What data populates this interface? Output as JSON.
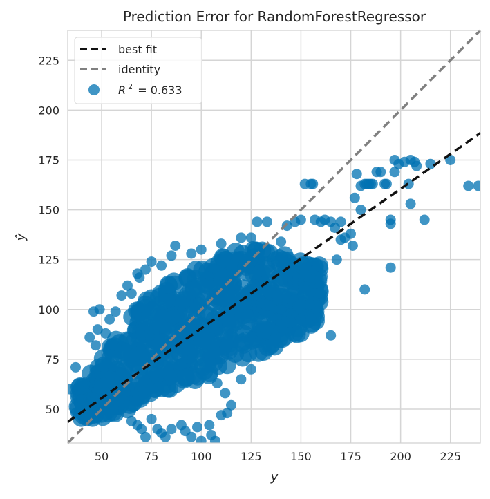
{
  "chart_data": {
    "type": "scatter",
    "title": "Prediction Error for RandomForestRegressor",
    "xlabel": "y",
    "ylabel": "ŷ",
    "xlim": [
      33,
      240
    ],
    "ylim": [
      33,
      240
    ],
    "x_ticks": [
      50,
      75,
      100,
      125,
      150,
      175,
      200,
      225
    ],
    "y_ticks": [
      50,
      75,
      100,
      125,
      150,
      175,
      200,
      225
    ],
    "grid": true,
    "legend_position": "top-left",
    "legend": [
      {
        "label": "best fit",
        "style": "dashed",
        "color": "#111111"
      },
      {
        "label": "identity",
        "style": "dashed",
        "color": "#808080"
      },
      {
        "label_prefix": "R",
        "label_sup": "2",
        "label_suffix": " = 0.633",
        "style": "marker",
        "color": "#0072b2"
      }
    ],
    "r2": 0.633,
    "best_fit": {
      "slope": 0.7,
      "intercept": 20.5
    },
    "identity": {
      "slope": 1,
      "intercept": 0
    },
    "point_color": "#0072b2",
    "cloud": {
      "segments": [
        [
          38,
          45,
          60
        ],
        [
          50,
          46,
          75
        ],
        [
          60,
          47,
          90
        ],
        [
          70,
          55,
          103
        ],
        [
          80,
          58,
          110
        ],
        [
          90,
          62,
          118
        ],
        [
          100,
          65,
          124
        ],
        [
          110,
          70,
          128
        ],
        [
          120,
          75,
          130
        ],
        [
          130,
          78,
          130
        ],
        [
          140,
          80,
          128
        ],
        [
          150,
          88,
          124
        ],
        [
          160,
          96,
          122
        ]
      ]
    },
    "points": [
      {
        "x": 34,
        "y": 60
      },
      {
        "x": 37,
        "y": 71
      },
      {
        "x": 37,
        "y": 48
      },
      {
        "x": 40,
        "y": 55
      },
      {
        "x": 43,
        "y": 52
      },
      {
        "x": 44,
        "y": 86
      },
      {
        "x": 46,
        "y": 99
      },
      {
        "x": 47,
        "y": 82
      },
      {
        "x": 48,
        "y": 90
      },
      {
        "x": 49,
        "y": 100
      },
      {
        "x": 52,
        "y": 88
      },
      {
        "x": 54,
        "y": 95
      },
      {
        "x": 57,
        "y": 99
      },
      {
        "x": 60,
        "y": 107
      },
      {
        "x": 63,
        "y": 112
      },
      {
        "x": 65,
        "y": 108
      },
      {
        "x": 68,
        "y": 118
      },
      {
        "x": 69,
        "y": 116
      },
      {
        "x": 72,
        "y": 120
      },
      {
        "x": 75,
        "y": 124
      },
      {
        "x": 80,
        "y": 122
      },
      {
        "x": 85,
        "y": 127
      },
      {
        "x": 87,
        "y": 132
      },
      {
        "x": 95,
        "y": 128
      },
      {
        "x": 100,
        "y": 130
      },
      {
        "x": 110,
        "y": 133
      },
      {
        "x": 120,
        "y": 136
      },
      {
        "x": 125,
        "y": 136
      },
      {
        "x": 128,
        "y": 144
      },
      {
        "x": 133,
        "y": 144
      },
      {
        "x": 140,
        "y": 134
      },
      {
        "x": 143,
        "y": 142
      },
      {
        "x": 147,
        "y": 144
      },
      {
        "x": 150,
        "y": 145
      },
      {
        "x": 152,
        "y": 163
      },
      {
        "x": 155,
        "y": 163
      },
      {
        "x": 156,
        "y": 163
      },
      {
        "x": 157,
        "y": 145
      },
      {
        "x": 160,
        "y": 144
      },
      {
        "x": 162,
        "y": 145
      },
      {
        "x": 165,
        "y": 144
      },
      {
        "x": 167,
        "y": 141
      },
      {
        "x": 170,
        "y": 144
      },
      {
        "x": 172,
        "y": 136
      },
      {
        "x": 175,
        "y": 138
      },
      {
        "x": 176,
        "y": 132
      },
      {
        "x": 177,
        "y": 156
      },
      {
        "x": 178,
        "y": 168
      },
      {
        "x": 180,
        "y": 162
      },
      {
        "x": 180,
        "y": 150
      },
      {
        "x": 182,
        "y": 163
      },
      {
        "x": 183,
        "y": 163
      },
      {
        "x": 184,
        "y": 163
      },
      {
        "x": 185,
        "y": 163
      },
      {
        "x": 186,
        "y": 163
      },
      {
        "x": 188,
        "y": 169
      },
      {
        "x": 190,
        "y": 169
      },
      {
        "x": 192,
        "y": 163
      },
      {
        "x": 193,
        "y": 163
      },
      {
        "x": 195,
        "y": 145
      },
      {
        "x": 195,
        "y": 143
      },
      {
        "x": 197,
        "y": 169
      },
      {
        "x": 197,
        "y": 175
      },
      {
        "x": 199,
        "y": 173
      },
      {
        "x": 202,
        "y": 174
      },
      {
        "x": 204,
        "y": 163
      },
      {
        "x": 205,
        "y": 153
      },
      {
        "x": 205,
        "y": 175
      },
      {
        "x": 207,
        "y": 174
      },
      {
        "x": 208,
        "y": 172
      },
      {
        "x": 212,
        "y": 145
      },
      {
        "x": 215,
        "y": 173
      },
      {
        "x": 225,
        "y": 175
      },
      {
        "x": 234,
        "y": 162
      },
      {
        "x": 239,
        "y": 162
      },
      {
        "x": 195,
        "y": 121
      },
      {
        "x": 182,
        "y": 110
      },
      {
        "x": 170,
        "y": 135
      },
      {
        "x": 168,
        "y": 125
      },
      {
        "x": 165,
        "y": 87
      },
      {
        "x": 158,
        "y": 96
      },
      {
        "x": 150,
        "y": 95
      },
      {
        "x": 145,
        "y": 98
      },
      {
        "x": 140,
        "y": 100
      },
      {
        "x": 135,
        "y": 96
      },
      {
        "x": 130,
        "y": 103
      },
      {
        "x": 125,
        "y": 70
      },
      {
        "x": 120,
        "y": 65
      },
      {
        "x": 112,
        "y": 58
      },
      {
        "x": 108,
        "y": 63
      },
      {
        "x": 100,
        "y": 34
      },
      {
        "x": 98,
        "y": 41
      },
      {
        "x": 95,
        "y": 36
      },
      {
        "x": 92,
        "y": 39
      },
      {
        "x": 90,
        "y": 42
      },
      {
        "x": 85,
        "y": 40
      },
      {
        "x": 82,
        "y": 36
      },
      {
        "x": 80,
        "y": 38
      },
      {
        "x": 78,
        "y": 40
      },
      {
        "x": 75,
        "y": 45
      },
      {
        "x": 72,
        "y": 36
      },
      {
        "x": 70,
        "y": 40
      },
      {
        "x": 68,
        "y": 42
      },
      {
        "x": 65,
        "y": 44
      },
      {
        "x": 105,
        "y": 37
      },
      {
        "x": 107,
        "y": 34
      },
      {
        "x": 104,
        "y": 42
      },
      {
        "x": 110,
        "y": 47
      },
      {
        "x": 115,
        "y": 52
      },
      {
        "x": 113,
        "y": 48
      }
    ]
  }
}
